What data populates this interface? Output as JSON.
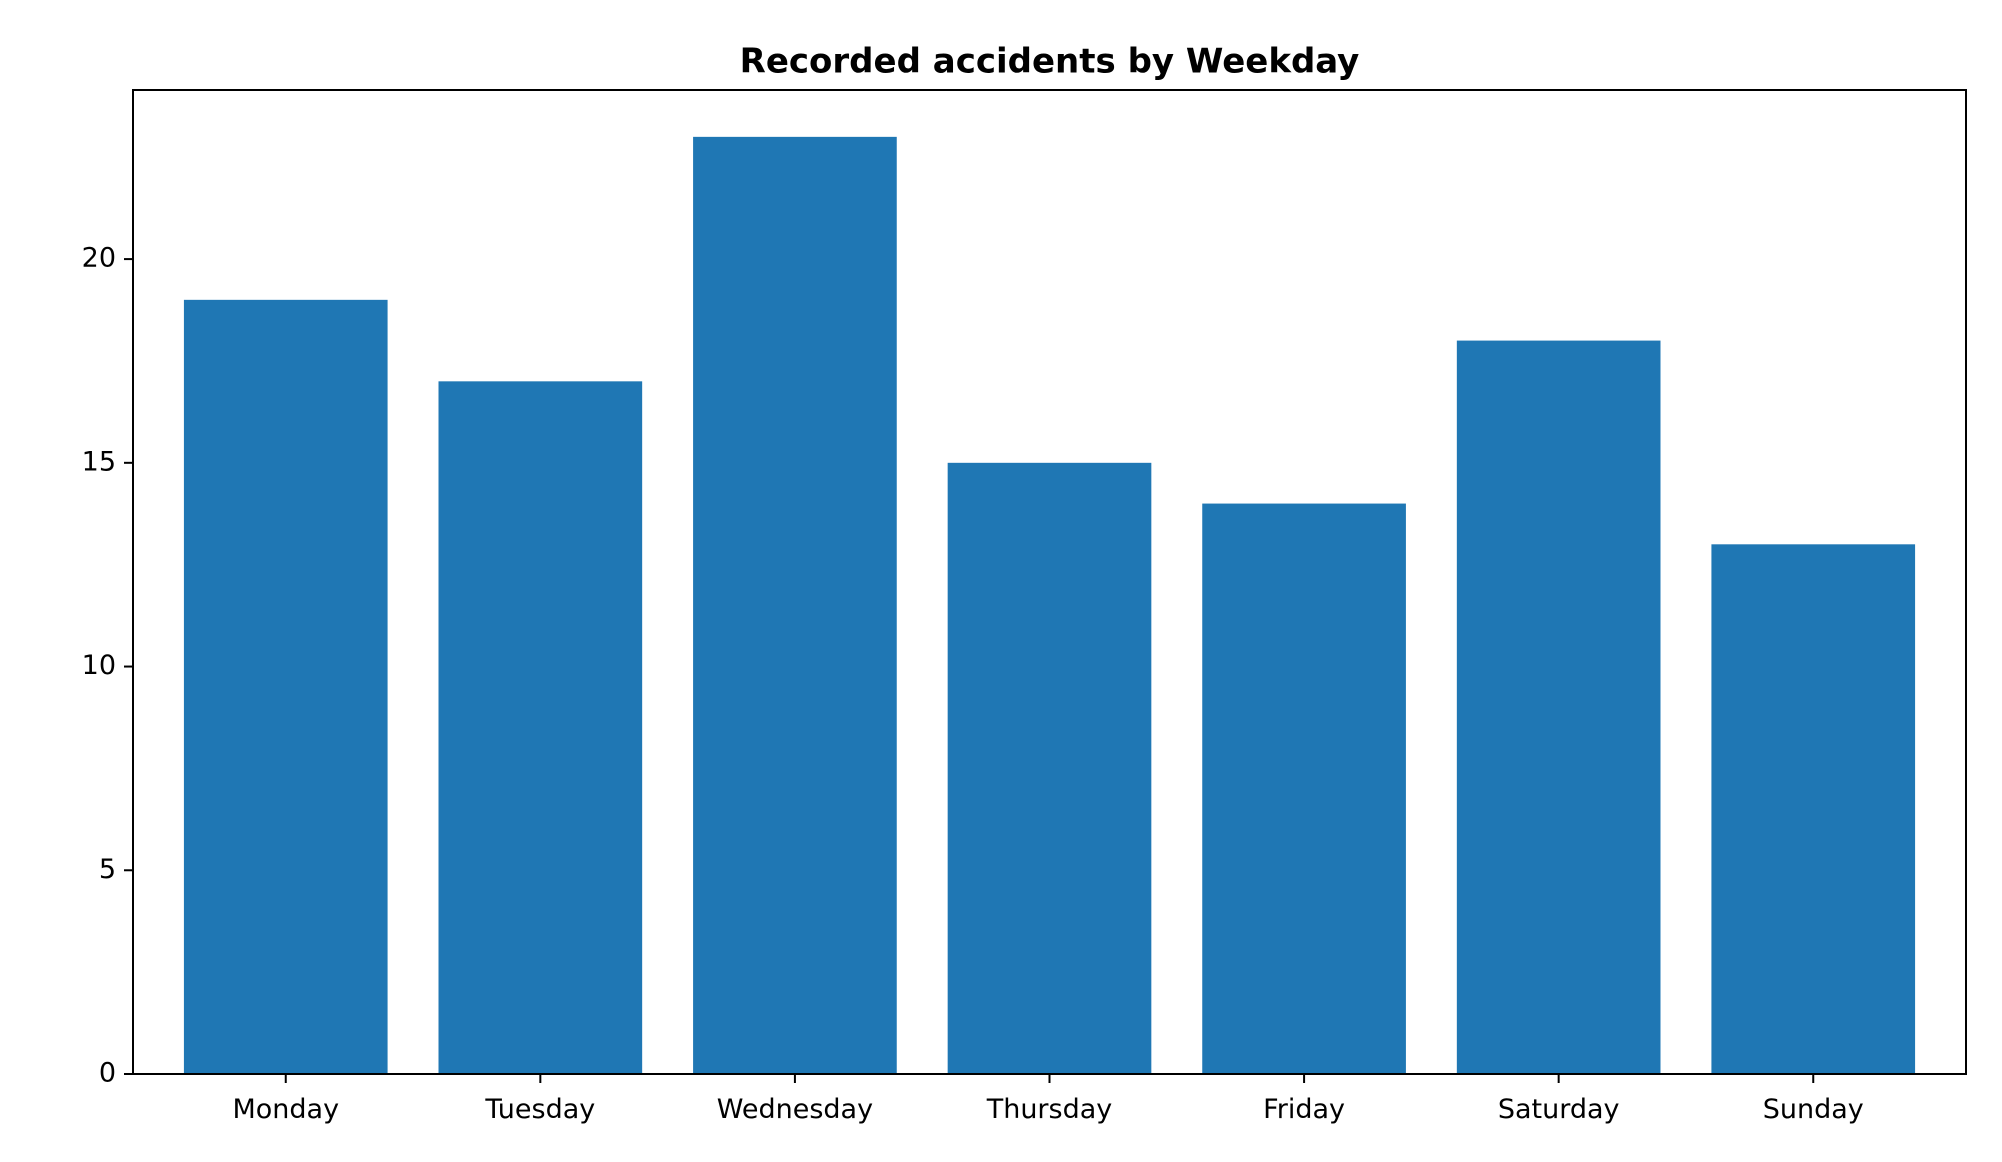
{
  "chart_data": {
    "type": "bar",
    "title": "Recorded accidents by Weekday",
    "xlabel": "",
    "ylabel": "",
    "categories": [
      "Monday",
      "Tuesday",
      "Wednesday",
      "Thursday",
      "Friday",
      "Saturday",
      "Sunday"
    ],
    "values": [
      19,
      17,
      23,
      15,
      14,
      18,
      13
    ],
    "ylim": [
      0,
      24.15
    ],
    "yticks": [
      0,
      5,
      10,
      15,
      20
    ],
    "grid": false,
    "legend": "none",
    "colors": {
      "bar": "#1f77b4",
      "axis": "#000000",
      "background": "#ffffff"
    }
  }
}
